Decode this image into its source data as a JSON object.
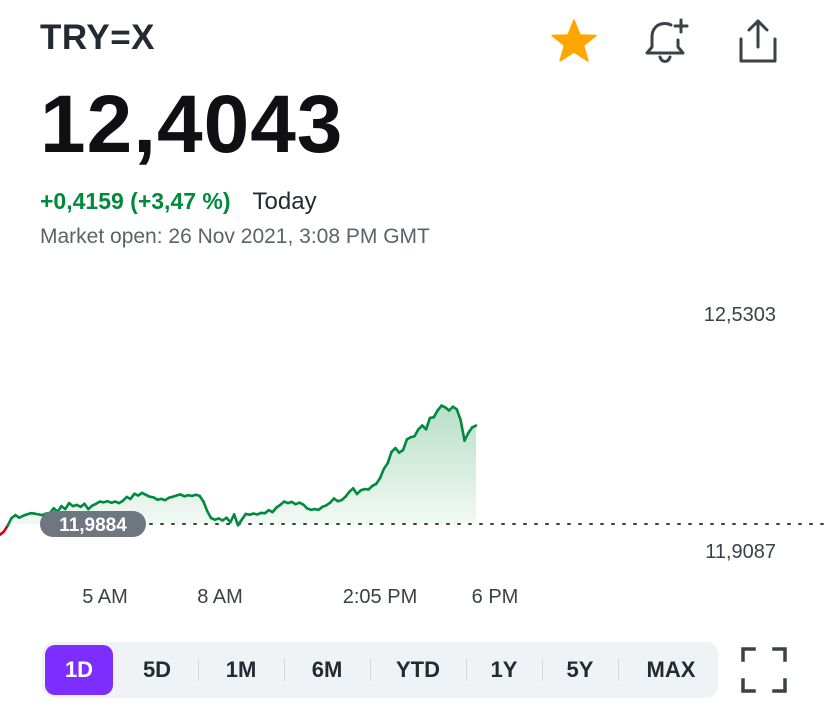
{
  "header": {
    "ticker": "TRY=X",
    "icons": {
      "favorite": "star-icon",
      "alert": "bell-plus-icon",
      "share": "share-icon"
    },
    "star_color": "#ffa700"
  },
  "quote": {
    "price": "12,4043",
    "change": "+0,4159 (+3,47 %)",
    "period": "Today",
    "market_status": "Market open: 26 Nov 2021, 3:08 PM GMT",
    "up_color": "#008a3c",
    "down_color": "#d0021b"
  },
  "chart_data": {
    "type": "line",
    "x_tick_labels": [
      "5 AM",
      "8 AM",
      "2:05 PM",
      "6 PM"
    ],
    "y_labels": {
      "high": "12,5303",
      "low": "11,9087"
    },
    "reference": {
      "label": "11,9884",
      "value": 11.9884
    },
    "ylim": [
      11.9087,
      12.5303
    ],
    "series_values": [
      11.96,
      11.968,
      11.984,
      12.004,
      12.012,
      12.005,
      12.01,
      12.014,
      12.017,
      12.016,
      12.014,
      12.012,
      12.016,
      12.018,
      12.03,
      12.021,
      12.036,
      12.028,
      12.044,
      12.036,
      12.039,
      12.034,
      12.042,
      12.028,
      12.037,
      12.042,
      12.048,
      12.046,
      12.049,
      12.045,
      12.048,
      12.044,
      12.05,
      12.06,
      12.055,
      12.069,
      12.064,
      12.071,
      12.066,
      12.061,
      12.059,
      12.053,
      12.055,
      12.052,
      12.058,
      12.061,
      12.064,
      12.067,
      12.062,
      12.065,
      12.063,
      12.066,
      12.063,
      12.048,
      12.022,
      12.004,
      12.0,
      12.003,
      11.998,
      12.005,
      11.993,
      12.014,
      11.985,
      12.0,
      12.015,
      12.013,
      12.016,
      12.014,
      12.018,
      12.017,
      12.025,
      12.02,
      12.032,
      12.039,
      12.048,
      12.044,
      12.047,
      12.041,
      12.045,
      12.04,
      12.03,
      12.026,
      12.028,
      12.026,
      12.034,
      12.038,
      12.045,
      12.056,
      12.049,
      12.052,
      12.061,
      12.074,
      12.083,
      12.068,
      12.078,
      12.081,
      12.08,
      12.09,
      12.095,
      12.11,
      12.135,
      12.15,
      12.18,
      12.19,
      12.178,
      12.185,
      12.213,
      12.219,
      12.222,
      12.24,
      12.25,
      12.24,
      12.27,
      12.272,
      12.29,
      12.303,
      12.298,
      12.29,
      12.3,
      12.293,
      12.265,
      12.21,
      12.23,
      12.245,
      12.25
    ]
  },
  "range_selector": {
    "options": [
      "1D",
      "5D",
      "1M",
      "6M",
      "YTD",
      "1Y",
      "5Y",
      "MAX"
    ],
    "selected": "1D",
    "accent": "#7d2eff"
  }
}
